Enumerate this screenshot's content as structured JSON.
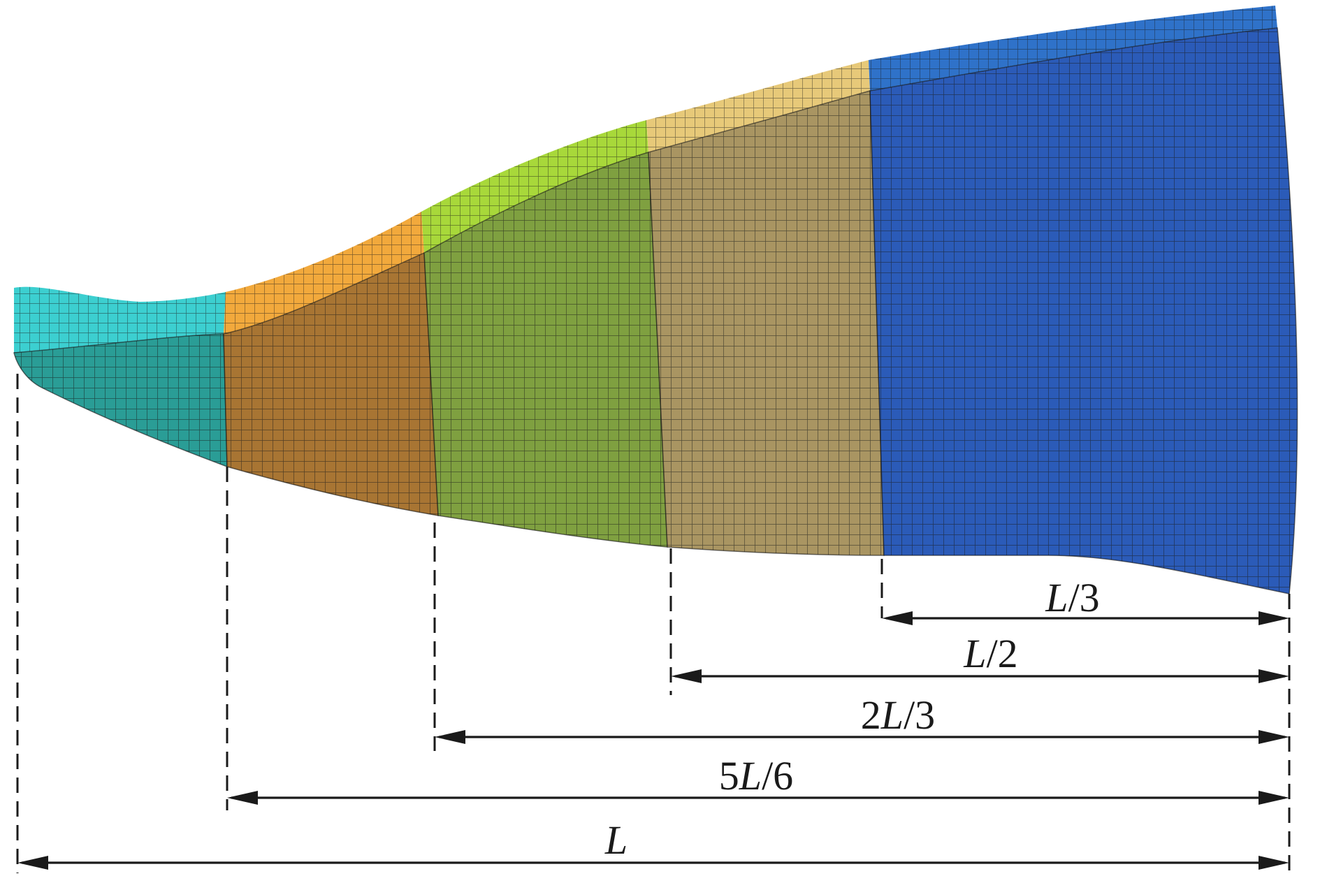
{
  "figure": {
    "segments": [
      {
        "name": "segment-1",
        "top_color": "#3ccfd0",
        "face_color": "#2a9d96"
      },
      {
        "name": "segment-2",
        "top_color": "#f2a93c",
        "face_color": "#a87533"
      },
      {
        "name": "segment-3",
        "top_color": "#a8d83a",
        "face_color": "#7fa040"
      },
      {
        "name": "segment-4",
        "top_color": "#e7c979",
        "face_color": "#a99562"
      },
      {
        "name": "segment-5",
        "top_color": "#2f72c9",
        "face_color": "#2b5bb8"
      }
    ],
    "dimensions": [
      {
        "label_num": "",
        "label_var": "L",
        "label_den": "/3"
      },
      {
        "label_num": "",
        "label_var": "L",
        "label_den": "/2"
      },
      {
        "label_num": "2",
        "label_var": "L",
        "label_den": "/3"
      },
      {
        "label_num": "5",
        "label_var": "L",
        "label_den": "/6"
      },
      {
        "label_num": "",
        "label_var": "L",
        "label_den": ""
      }
    ]
  }
}
